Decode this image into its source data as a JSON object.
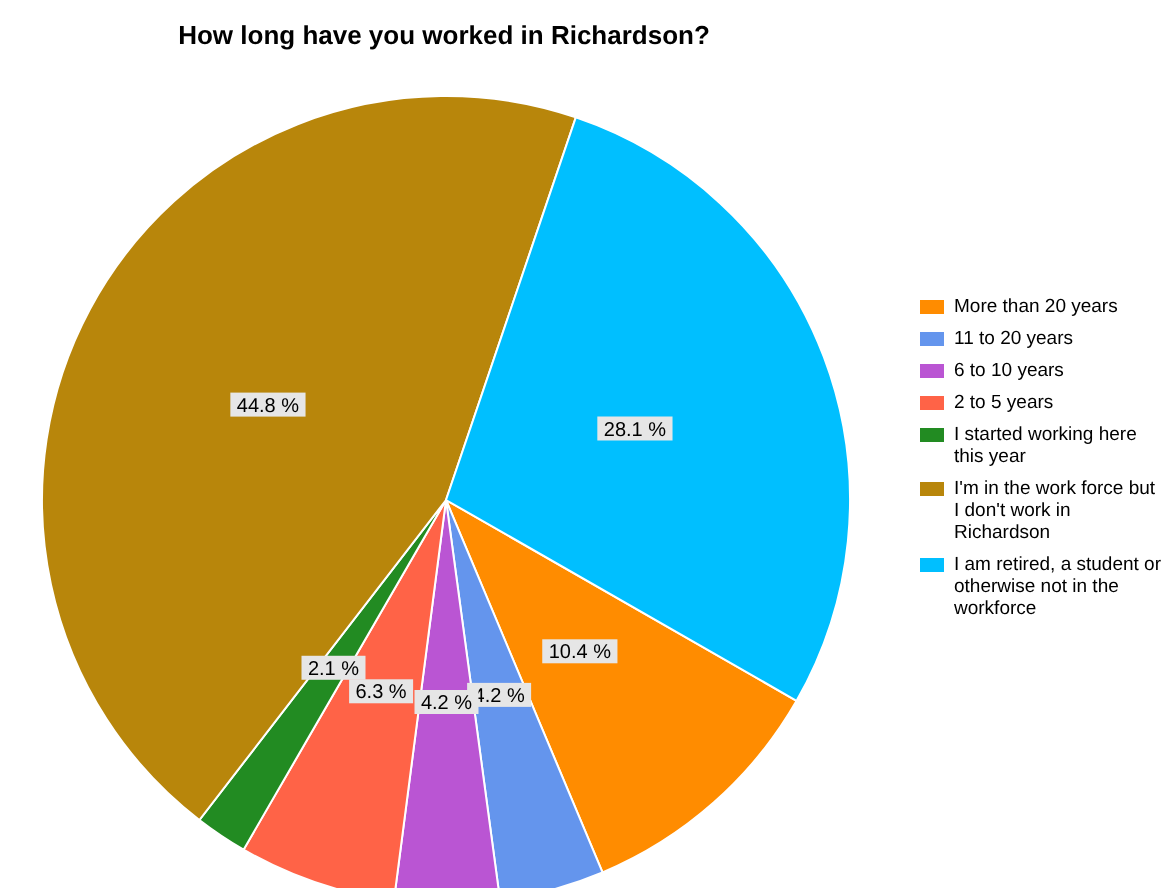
{
  "chart_data": {
    "type": "pie",
    "title": "How long have you worked in Richardson?",
    "categories": [
      "More than 20 years",
      "11 to 20 years",
      "6 to 10 years",
      "2 to 5 years",
      "I started working here this year",
      "I'm in the work force but I don't work in Richardson",
      "I am retired, a student or otherwise not in the workforce"
    ],
    "values": [
      10.4,
      4.2,
      4.2,
      6.3,
      2.1,
      44.8,
      28.1
    ],
    "colors": [
      "#ff8c00",
      "#6495ed",
      "#ba55d3",
      "#ff6347",
      "#228b22",
      "#b8860b",
      "#00bfff"
    ],
    "value_labels": [
      "10.4 %",
      "4.2 %",
      "4.2 %",
      "6.3 %",
      "2.1 %",
      "44.8 %",
      "28.1 %"
    ],
    "legend": "right"
  }
}
